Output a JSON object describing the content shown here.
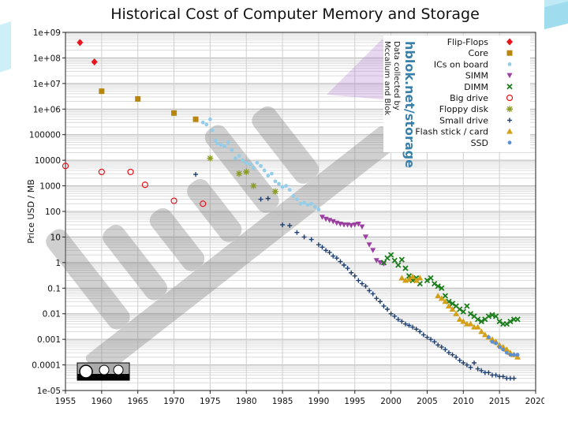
{
  "chart_data": {
    "type": "scatter",
    "title": "Historical Cost of Computer Memory and Storage",
    "xlabel": "",
    "ylabel": "Price USD / MB",
    "xlim": [
      1955,
      2020
    ],
    "ylim": [
      1e-05,
      1000000000.0
    ],
    "yscale": "log",
    "grid": true,
    "legend_position": "top-right",
    "x_ticks": [
      "1955",
      "1960",
      "1965",
      "1970",
      "1975",
      "1980",
      "1985",
      "1990",
      "1995",
      "2000",
      "2005",
      "2010",
      "2015",
      "2020"
    ],
    "y_ticks": [
      "1e+09",
      "1e+08",
      "1e+07",
      "1e+06",
      "100000",
      "10000",
      "1000",
      "100",
      "10",
      "1",
      "0.1",
      "0.01",
      "0.001",
      "0.0001",
      "1e-05"
    ],
    "credit": {
      "site": "hblok.net/storage",
      "line1": "Data collected by",
      "line2": "Mccallum and Blok"
    },
    "series": [
      {
        "name": "Flip-Flops",
        "marker": "diamond",
        "color": "#e8141b",
        "points": [
          [
            1957,
            400000000
          ],
          [
            1959,
            70000000
          ]
        ]
      },
      {
        "name": "Core",
        "marker": "square",
        "color": "#b8860b",
        "points": [
          [
            1960,
            5000000
          ],
          [
            1965,
            2500000
          ],
          [
            1970,
            700000
          ],
          [
            1973,
            400000
          ]
        ]
      },
      {
        "name": "ICs on board",
        "marker": "dot",
        "color": "#93cde9",
        "points": [
          [
            1974,
            300000
          ],
          [
            1974.5,
            250000
          ],
          [
            1975,
            400000
          ],
          [
            1975.3,
            150000
          ],
          [
            1975.7,
            60000
          ],
          [
            1976,
            45000
          ],
          [
            1976.5,
            40000
          ],
          [
            1977,
            35000
          ],
          [
            1977.5,
            50000
          ],
          [
            1978,
            25000
          ],
          [
            1978.5,
            12000
          ],
          [
            1979,
            15000
          ],
          [
            1979.5,
            10000
          ],
          [
            1980,
            8000
          ],
          [
            1980.5,
            7000
          ],
          [
            1981,
            5000
          ],
          [
            1981.5,
            8000
          ],
          [
            1982,
            6000
          ],
          [
            1982.5,
            4000
          ],
          [
            1983,
            2500
          ],
          [
            1983.5,
            3000
          ],
          [
            1984,
            1500
          ],
          [
            1984.5,
            1200
          ],
          [
            1985,
            900
          ],
          [
            1985.5,
            1000
          ],
          [
            1986,
            700
          ],
          [
            1986.5,
            400
          ],
          [
            1987,
            300
          ],
          [
            1987.5,
            200
          ],
          [
            1988,
            220
          ],
          [
            1988.5,
            180
          ],
          [
            1989,
            200
          ],
          [
            1989.5,
            150
          ],
          [
            1990,
            120
          ]
        ]
      },
      {
        "name": "SIMM",
        "marker": "triangle-down",
        "color": "#9b3fa0",
        "points": [
          [
            1990.5,
            60
          ],
          [
            1991,
            50
          ],
          [
            1991.5,
            45
          ],
          [
            1992,
            40
          ],
          [
            1992.5,
            35
          ],
          [
            1993,
            32
          ],
          [
            1993.5,
            30
          ],
          [
            1994,
            30
          ],
          [
            1994.5,
            28
          ],
          [
            1995,
            30
          ],
          [
            1995.5,
            32
          ],
          [
            1996,
            25
          ],
          [
            1996.5,
            10
          ],
          [
            1997,
            5
          ],
          [
            1997.5,
            3
          ],
          [
            1998,
            1.2
          ],
          [
            1998.5,
            1.0
          ],
          [
            1999,
            0.9
          ]
        ]
      },
      {
        "name": "DIMM",
        "marker": "x",
        "color": "#1a7d1a",
        "points": [
          [
            1999,
            1
          ],
          [
            1999.5,
            1.5
          ],
          [
            2000,
            2
          ],
          [
            2000.5,
            1.2
          ],
          [
            2001,
            0.8
          ],
          [
            2001.5,
            1.3
          ],
          [
            2002,
            0.6
          ],
          [
            2002.5,
            0.3
          ],
          [
            2003,
            0.2
          ],
          [
            2003.5,
            0.25
          ],
          [
            2004,
            0.15
          ],
          [
            2005,
            0.2
          ],
          [
            2005.5,
            0.25
          ],
          [
            2006,
            0.15
          ],
          [
            2006.5,
            0.12
          ],
          [
            2007,
            0.1
          ],
          [
            2007.5,
            0.05
          ],
          [
            2008,
            0.03
          ],
          [
            2008.5,
            0.025
          ],
          [
            2009,
            0.02
          ],
          [
            2009.5,
            0.015
          ],
          [
            2010,
            0.012
          ],
          [
            2010.5,
            0.02
          ],
          [
            2011,
            0.01
          ],
          [
            2011.5,
            0.008
          ],
          [
            2012,
            0.006
          ],
          [
            2012.5,
            0.005
          ],
          [
            2013,
            0.006
          ],
          [
            2013.5,
            0.008
          ],
          [
            2014,
            0.009
          ],
          [
            2014.5,
            0.008
          ],
          [
            2015,
            0.005
          ],
          [
            2015.5,
            0.004
          ],
          [
            2016,
            0.004
          ],
          [
            2016.5,
            0.005
          ],
          [
            2017,
            0.006
          ],
          [
            2017.5,
            0.006
          ]
        ]
      },
      {
        "name": "Big drive",
        "marker": "circle-open",
        "color": "#e8141b",
        "points": [
          [
            1955,
            6000
          ],
          [
            1960,
            3500
          ],
          [
            1964,
            3500
          ],
          [
            1966,
            1100
          ],
          [
            1970,
            260
          ],
          [
            1974,
            200
          ]
        ]
      },
      {
        "name": "Floppy disk",
        "marker": "star",
        "color": "#8a9a22",
        "points": [
          [
            1975,
            12000
          ],
          [
            1979,
            3000
          ],
          [
            1980,
            3500
          ],
          [
            1981,
            1000
          ],
          [
            1984,
            600
          ]
        ]
      },
      {
        "name": "Small drive",
        "marker": "plus",
        "color": "#1f3f6e",
        "points": [
          [
            1973,
            2800
          ],
          [
            1982,
            300
          ],
          [
            1983,
            320
          ],
          [
            1985,
            30
          ],
          [
            1986,
            28
          ],
          [
            1987,
            15
          ],
          [
            1988,
            10
          ],
          [
            1989,
            8
          ],
          [
            1990,
            5
          ],
          [
            1990.5,
            4
          ],
          [
            1991,
            3
          ],
          [
            1991.5,
            2.5
          ],
          [
            1992,
            1.8
          ],
          [
            1992.5,
            1.5
          ],
          [
            1993,
            1.1
          ],
          [
            1993.5,
            0.8
          ],
          [
            1994,
            0.6
          ],
          [
            1994.5,
            0.4
          ],
          [
            1995,
            0.3
          ],
          [
            1995.5,
            0.2
          ],
          [
            1996,
            0.15
          ],
          [
            1996.5,
            0.12
          ],
          [
            1997,
            0.08
          ],
          [
            1997.5,
            0.06
          ],
          [
            1998,
            0.04
          ],
          [
            1998.5,
            0.03
          ],
          [
            1999,
            0.02
          ],
          [
            1999.5,
            0.015
          ],
          [
            2000,
            0.01
          ],
          [
            2000.5,
            0.008
          ],
          [
            2001,
            0.006
          ],
          [
            2001.5,
            0.005
          ],
          [
            2002,
            0.004
          ],
          [
            2002.5,
            0.0035
          ],
          [
            2003,
            0.003
          ],
          [
            2003.5,
            0.0025
          ],
          [
            2004,
            0.002
          ],
          [
            2004.5,
            0.0015
          ],
          [
            2005,
            0.0012
          ],
          [
            2005.5,
            0.001
          ],
          [
            2006,
            0.0008
          ],
          [
            2006.5,
            0.0006
          ],
          [
            2007,
            0.0005
          ],
          [
            2007.5,
            0.0004
          ],
          [
            2008,
            0.0003
          ],
          [
            2008.5,
            0.00025
          ],
          [
            2009,
            0.0002
          ],
          [
            2009.5,
            0.00015
          ],
          [
            2010,
            0.00012
          ],
          [
            2010.5,
            0.0001
          ],
          [
            2011,
            8e-05
          ],
          [
            2011.5,
            0.00012
          ],
          [
            2012,
            7e-05
          ],
          [
            2012.5,
            6e-05
          ],
          [
            2013,
            5e-05
          ],
          [
            2013.5,
            5e-05
          ],
          [
            2014,
            4e-05
          ],
          [
            2014.5,
            4e-05
          ],
          [
            2015,
            3.5e-05
          ],
          [
            2015.5,
            3.5e-05
          ],
          [
            2016,
            3e-05
          ],
          [
            2016.5,
            3e-05
          ],
          [
            2017,
            3e-05
          ]
        ]
      },
      {
        "name": "Flash stick / card",
        "marker": "triangle-up",
        "color": "#d4a017",
        "points": [
          [
            2001.5,
            0.25
          ],
          [
            2002,
            0.2
          ],
          [
            2002.5,
            0.22
          ],
          [
            2003,
            0.28
          ],
          [
            2003.5,
            0.2
          ],
          [
            2004,
            0.25
          ],
          [
            2006.5,
            0.05
          ],
          [
            2007,
            0.04
          ],
          [
            2007.5,
            0.03
          ],
          [
            2008,
            0.02
          ],
          [
            2008.5,
            0.015
          ],
          [
            2009,
            0.01
          ],
          [
            2009.5,
            0.006
          ],
          [
            2010,
            0.005
          ],
          [
            2010.5,
            0.004
          ],
          [
            2011,
            0.004
          ],
          [
            2011.5,
            0.003
          ],
          [
            2012,
            0.003
          ],
          [
            2012.5,
            0.002
          ],
          [
            2013,
            0.0015
          ],
          [
            2013.5,
            0.0012
          ],
          [
            2014,
            0.001
          ],
          [
            2014.5,
            0.0008
          ],
          [
            2015,
            0.0006
          ],
          [
            2015.5,
            0.0005
          ],
          [
            2016,
            0.0004
          ],
          [
            2016.5,
            0.0003
          ],
          [
            2017,
            0.00025
          ],
          [
            2017.5,
            0.0002
          ]
        ]
      },
      {
        "name": "SSD",
        "marker": "dot",
        "color": "#5b8fd6",
        "points": [
          [
            2013.5,
            0.0012
          ],
          [
            2014,
            0.0008
          ],
          [
            2014.5,
            0.0007
          ],
          [
            2015,
            0.0005
          ],
          [
            2015.5,
            0.0004
          ],
          [
            2016,
            0.0003
          ],
          [
            2016.5,
            0.00025
          ],
          [
            2017,
            0.00025
          ],
          [
            2017.5,
            0.00025
          ]
        ]
      }
    ]
  }
}
